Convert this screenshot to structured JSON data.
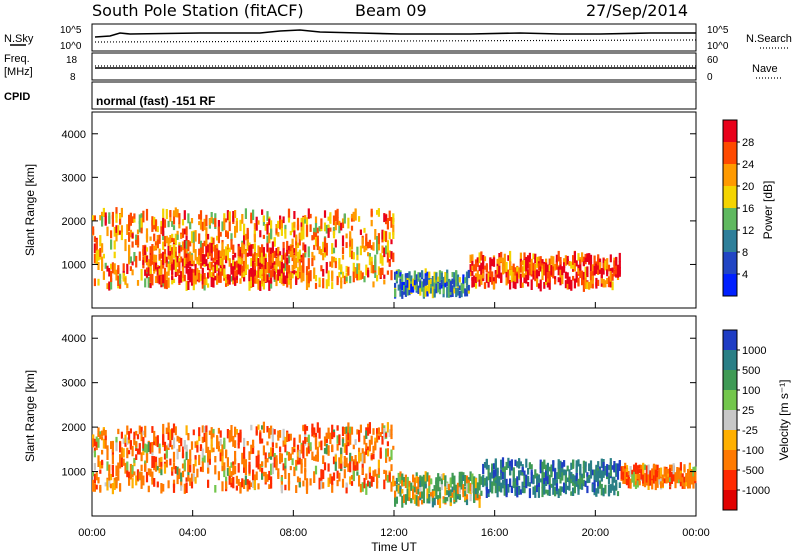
{
  "header": {
    "station": "South Pole Station (fitACF)",
    "beam": "Beam 09",
    "date": "27/Sep/2014"
  },
  "noise_panel": {
    "left_label": "N.Sky",
    "right_label": "N.Search",
    "left_ticks": [
      "10^5",
      "10^0"
    ],
    "right_ticks": [
      "10^5",
      "10^0"
    ]
  },
  "freq_panel": {
    "left_label_1": "Freq.",
    "left_label_2": "[MHz]",
    "right_label": "Nave",
    "left_ticks": [
      "18",
      "8"
    ],
    "right_ticks": [
      "60",
      "0"
    ]
  },
  "cpid": {
    "label": "CPID",
    "program": "normal (fast) -151 RF"
  },
  "power_scale": {
    "title": "Power [dB]",
    "ticks": [
      "28",
      "24",
      "20",
      "16",
      "12",
      "8",
      "4"
    ],
    "colors": [
      "#e8001a",
      "#ff4a00",
      "#ff9a00",
      "#f4d400",
      "#5fb85f",
      "#2e7f9a",
      "#2145c4",
      "#0020ff"
    ]
  },
  "velocity_scale": {
    "title": "Velocity [m s⁻¹]",
    "ticks": [
      "1000",
      "500",
      "100",
      "25",
      "-25",
      "-100",
      "-500",
      "-1000"
    ],
    "colors": [
      "#1f3dc4",
      "#2a7f86",
      "#3f9a55",
      "#73c64c",
      "#c8c8c8",
      "#ffb000",
      "#ff7a00",
      "#ff2a00",
      "#e00000"
    ]
  },
  "chart_data": [
    {
      "type": "heatmap",
      "title": "Power",
      "ylabel": "Slant Range [km]",
      "xlabel": "Time UT",
      "y_ticks": [
        "1000",
        "2000",
        "3000",
        "4000"
      ],
      "x_ticks": [
        "00:00",
        "04:00",
        "08:00",
        "12:00",
        "16:00",
        "20:00",
        "00:00"
      ],
      "colorbar_label": "Power [dB]",
      "colorbar_range": [
        0,
        30
      ],
      "regions": [
        {
          "t_start": 0.0,
          "t_end": 12.0,
          "range_low": 500,
          "range_high": 2200,
          "value": 22
        },
        {
          "t_start": 2.0,
          "t_end": 8.5,
          "range_low": 600,
          "range_high": 1400,
          "value": 26
        },
        {
          "t_start": 15.0,
          "t_end": 21.0,
          "range_low": 500,
          "range_high": 1200,
          "value": 27
        },
        {
          "t_start": 12.0,
          "t_end": 15.0,
          "range_low": 300,
          "range_high": 800,
          "value": 10
        }
      ]
    },
    {
      "type": "heatmap",
      "title": "Velocity",
      "ylabel": "Slant Range [km]",
      "xlabel": "Time UT",
      "y_ticks": [
        "1000",
        "2000",
        "3000",
        "4000"
      ],
      "x_ticks": [
        "00:00",
        "04:00",
        "08:00",
        "12:00",
        "16:00",
        "20:00",
        "00:00"
      ],
      "colorbar_label": "Velocity [m s⁻¹]",
      "colorbar_range": [
        -1000,
        1000
      ],
      "regions": [
        {
          "t_start": 0.0,
          "t_end": 12.0,
          "range_low": 600,
          "range_high": 2000,
          "value": -300
        },
        {
          "t_start": 12.0,
          "t_end": 15.5,
          "range_low": 300,
          "range_high": 900,
          "value": 150
        },
        {
          "t_start": 15.5,
          "t_end": 21.0,
          "range_low": 500,
          "range_high": 1200,
          "value": 700
        },
        {
          "t_start": 21.0,
          "t_end": 24.0,
          "range_low": 700,
          "range_high": 1100,
          "value": -350
        }
      ]
    }
  ]
}
